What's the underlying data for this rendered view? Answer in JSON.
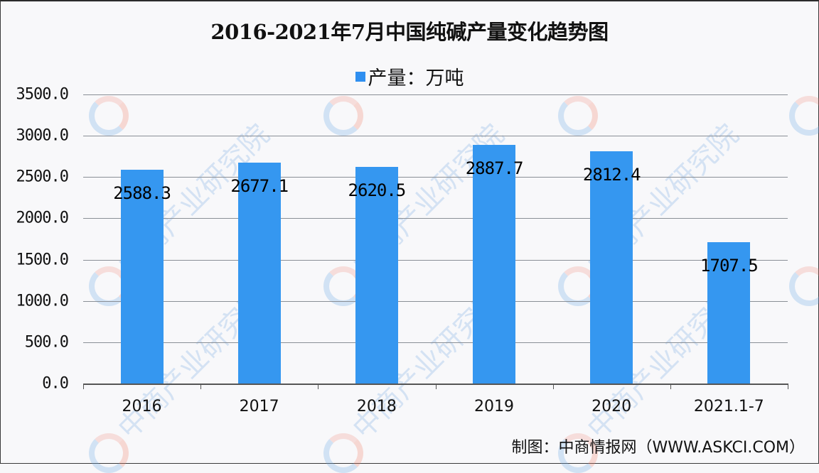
{
  "chart_data": {
    "type": "bar",
    "title": "2016-2021年7月中国纯碱产量变化趋势图",
    "legend": [
      "产量：万吨"
    ],
    "legend_position": "top",
    "categories": [
      "2016",
      "2017",
      "2018",
      "2019",
      "2020",
      "2021.1-7"
    ],
    "series": [
      {
        "name": "产量：万吨",
        "values": [
          2588.3,
          2677.1,
          2620.5,
          2887.7,
          2812.4,
          1707.5
        ],
        "color": "#3597f0"
      }
    ],
    "value_labels": [
      "2588.3",
      "2677.1",
      "2620.5",
      "2887.7",
      "2812.4",
      "1707.5"
    ],
    "xlabel": "",
    "ylabel": "",
    "ylim": [
      0,
      3500
    ],
    "yticks": [
      "0.0",
      "500.0",
      "1000.0",
      "1500.0",
      "2000.0",
      "2500.0",
      "3000.0",
      "3500.0"
    ],
    "grid": true
  },
  "footer": "制图：中商情报网（WWW.ASKCI.COM）",
  "watermark": "中商产业研究院"
}
